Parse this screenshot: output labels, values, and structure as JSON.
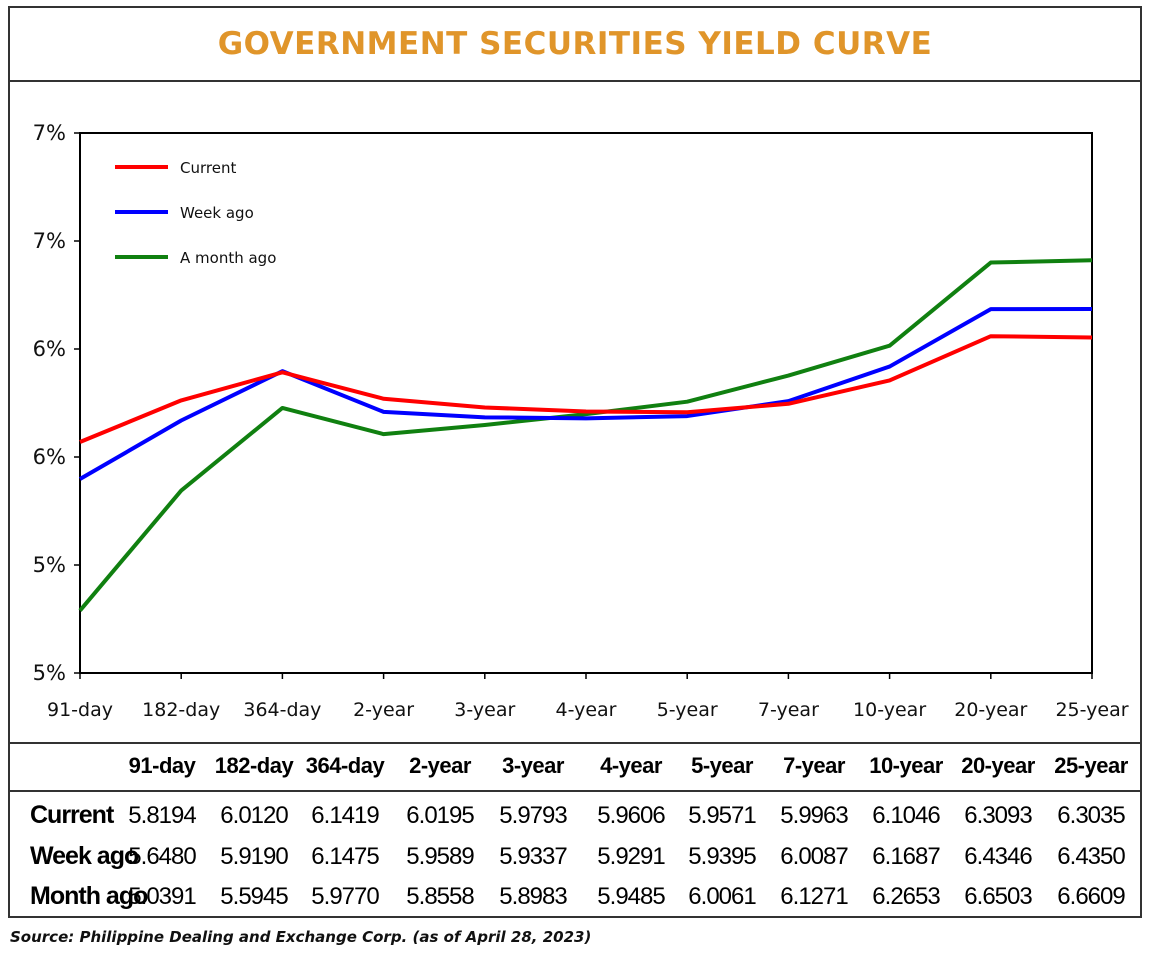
{
  "title": "GOVERNMENT SECURITIES YIELD CURVE",
  "source": "Source: Philippine Dealing and Exchange Corp. (as of April 28, 2023)",
  "colors": {
    "title": "#e0952a",
    "current": "#ff0000",
    "week_ago": "#0000ff",
    "month_ago": "#108010"
  },
  "chart_data": {
    "type": "line",
    "title": "GOVERNMENT SECURITIES YIELD CURVE",
    "categories": [
      "91-day",
      "182-day",
      "364-day",
      "2-year",
      "3-year",
      "4-year",
      "5-year",
      "7-year",
      "10-year",
      "20-year",
      "25-year"
    ],
    "y_tick_labels": [
      "7%",
      "7%",
      "6%",
      "6%",
      "5%",
      "5%"
    ],
    "ylim": [
      4.75,
      7.25
    ],
    "grid": false,
    "legend_position": "top-left",
    "series": [
      {
        "name": "Current",
        "values": [
          5.8194,
          6.012,
          6.1419,
          6.0195,
          5.9793,
          5.9606,
          5.9571,
          5.9963,
          6.1046,
          6.3093,
          6.3035
        ]
      },
      {
        "name": "Week ago",
        "values": [
          5.648,
          5.919,
          6.1475,
          5.9589,
          5.9337,
          5.9291,
          5.9395,
          6.0087,
          6.1687,
          6.4346,
          6.435
        ]
      },
      {
        "name": "A month ago",
        "values": [
          5.0391,
          5.5945,
          5.977,
          5.8558,
          5.8983,
          5.9485,
          6.0061,
          6.1271,
          6.2653,
          6.6503,
          6.6609
        ]
      }
    ]
  },
  "table": {
    "headers": [
      "91-day",
      "182-day",
      "364-day",
      "2-year",
      "3-year",
      "4-year",
      "5-year",
      "7-year",
      "10-year",
      "20-year",
      "25-year"
    ],
    "rows": [
      {
        "label": "Current",
        "values": [
          "5.8194",
          "6.0120",
          "6.1419",
          "6.0195",
          "5.9793",
          "5.9606",
          "5.9571",
          "5.9963",
          "6.1046",
          "6.3093",
          "6.3035"
        ]
      },
      {
        "label": "Week ago",
        "values": [
          "5.6480",
          "5.9190",
          "6.1475",
          "5.9589",
          "5.9337",
          "5.9291",
          "5.9395",
          "6.0087",
          "6.1687",
          "6.4346",
          "6.4350"
        ]
      },
      {
        "label": "Month ago",
        "values": [
          "5.0391",
          "5.5945",
          "5.9770",
          "5.8558",
          "5.8983",
          "5.9485",
          "6.0061",
          "6.1271",
          "6.2653",
          "6.6503",
          "6.6609"
        ]
      }
    ]
  }
}
